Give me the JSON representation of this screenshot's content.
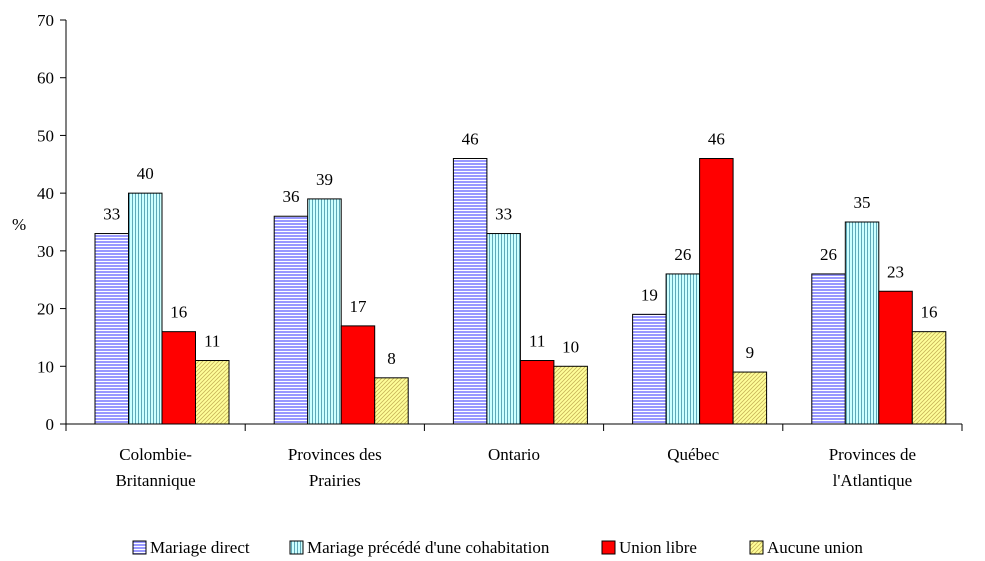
{
  "chart_data": {
    "type": "bar",
    "ylabel": "%",
    "ylim": [
      0,
      70
    ],
    "yticks": [
      0,
      10,
      20,
      30,
      40,
      50,
      60,
      70
    ],
    "grid": false,
    "legend_position": "bottom",
    "categories": [
      [
        "Colombie-",
        "Britannique"
      ],
      [
        "Provinces des",
        "Prairies"
      ],
      [
        "Ontario"
      ],
      [
        "Québec"
      ],
      [
        "Provinces de",
        "l'Atlantique"
      ]
    ],
    "series": [
      {
        "name": "Mariage direct",
        "color": "#9999ff",
        "pattern": "hlines",
        "values": [
          33,
          36,
          46,
          19,
          26
        ]
      },
      {
        "name": "Mariage précédé d'une cohabitation",
        "color": "#ccffff",
        "pattern": "vlines",
        "values": [
          40,
          39,
          33,
          26,
          35
        ]
      },
      {
        "name": "Union libre",
        "color": "#ff0000",
        "pattern": "solid",
        "values": [
          16,
          17,
          11,
          46,
          23
        ]
      },
      {
        "name": "Aucune union",
        "color": "#ffff99",
        "pattern": "diag",
        "values": [
          11,
          8,
          10,
          9,
          16
        ]
      }
    ]
  }
}
